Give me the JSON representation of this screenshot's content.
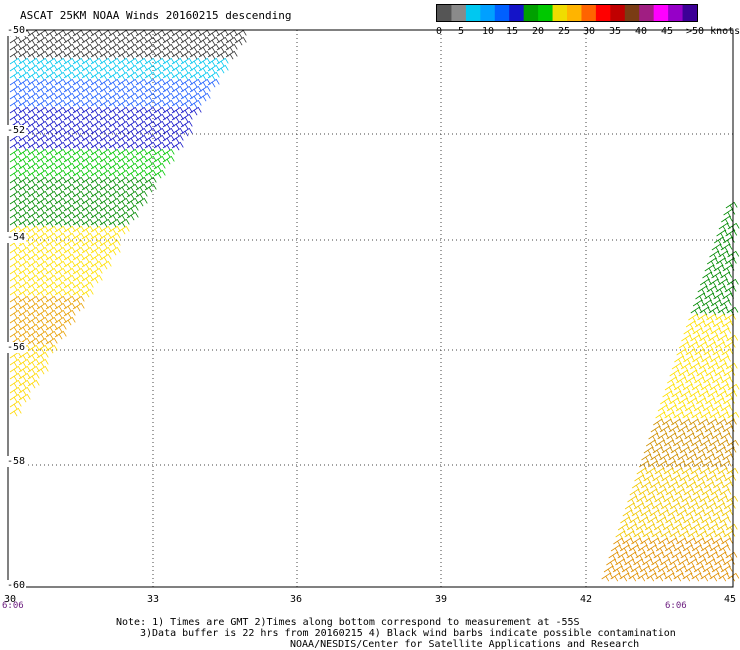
{
  "title": "ASCAT 25KM NOAA Winds 20160215 descending",
  "legend": {
    "colors": [
      "#555555",
      "#8a8a8a",
      "#00c8f0",
      "#00a0ff",
      "#0060ff",
      "#1414c8",
      "#00a000",
      "#00c800",
      "#f0dc00",
      "#ffb400",
      "#ff6400",
      "#ff0000",
      "#c00000",
      "#7a3c14",
      "#a01e82",
      "#ff00ff",
      "#9600c8",
      "#3c0096"
    ],
    "labels": [
      "0",
      "5",
      "10",
      "15",
      "20",
      "25",
      "30",
      "35",
      "40",
      "45",
      ">50 knots"
    ]
  },
  "lat_labels": [
    "-50",
    "-52",
    "-54",
    "-56",
    "-58",
    "-60"
  ],
  "lon_labels": [
    "30",
    "33",
    "36",
    "39",
    "42",
    "45"
  ],
  "time_labels": [
    "6:06",
    "6:06"
  ],
  "notes": {
    "line1": "Note: 1) Times are GMT 2)Times along bottom correspond to measurement at -55S",
    "line2": "3)Data buffer is 22 hrs from 20160215 4) Black wind barbs indicate possible contamination",
    "line3": "NOAA/NESDIS/Center for Satellite Applications and Research"
  }
}
